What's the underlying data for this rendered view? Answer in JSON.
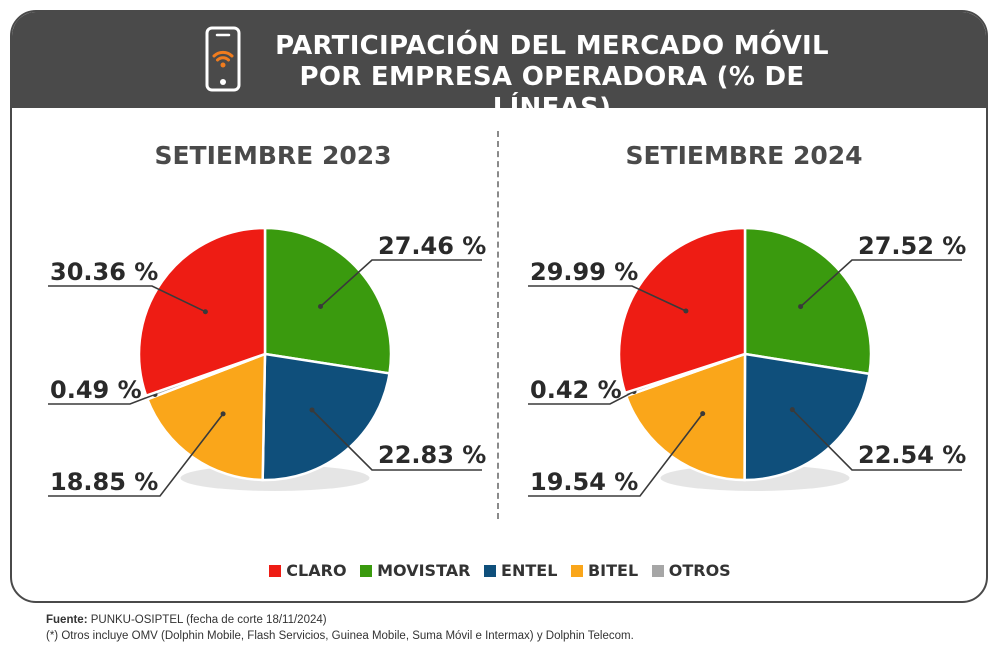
{
  "header": {
    "title_line1": "PARTICIPACIÓN DEL MERCADO MÓVIL",
    "title_line2": "POR EMPRESA OPERADORA (% DE LÍNEAS)",
    "icon": "smartphone-wifi-icon"
  },
  "colors": {
    "CLARO": "#ee1c14",
    "MOVISTAR": "#3a9a0e",
    "ENTEL": "#0f4f7b",
    "BITEL": "#faa61a",
    "OTROS": "#a6a6a6",
    "header_bg": "#4a4a4a"
  },
  "chart_data": [
    {
      "type": "pie",
      "title": "SETIEMBRE 2023",
      "slices": [
        {
          "name": "MOVISTAR",
          "value": 27.46,
          "label": "27.46 %"
        },
        {
          "name": "ENTEL",
          "value": 22.83,
          "label": "22.83 %"
        },
        {
          "name": "BITEL",
          "value": 18.85,
          "label": "18.85 %"
        },
        {
          "name": "OTROS",
          "value": 0.49,
          "label": "0.49 %"
        },
        {
          "name": "CLARO",
          "value": 30.36,
          "label": "30.36 %"
        }
      ]
    },
    {
      "type": "pie",
      "title": "SETIEMBRE 2024",
      "slices": [
        {
          "name": "MOVISTAR",
          "value": 27.52,
          "label": "27.52 %"
        },
        {
          "name": "ENTEL",
          "value": 22.54,
          "label": "22.54 %"
        },
        {
          "name": "BITEL",
          "value": 19.54,
          "label": "19.54 %"
        },
        {
          "name": "OTROS",
          "value": 0.42,
          "label": "0.42 %"
        },
        {
          "name": "CLARO",
          "value": 29.99,
          "label": "29.99 %"
        }
      ]
    }
  ],
  "legend": [
    "CLARO",
    "MOVISTAR",
    "ENTEL",
    "BITEL",
    "OTROS"
  ],
  "footer": {
    "source_label": "Fuente:",
    "source_text": " PUNKU-OSIPTEL (fecha de corte 18/11/2024)",
    "note": "(*) Otros incluye OMV (Dolphin Mobile, Flash Servicios, Guinea Mobile, Suma Móvil e Intermax) y Dolphin Telecom."
  }
}
